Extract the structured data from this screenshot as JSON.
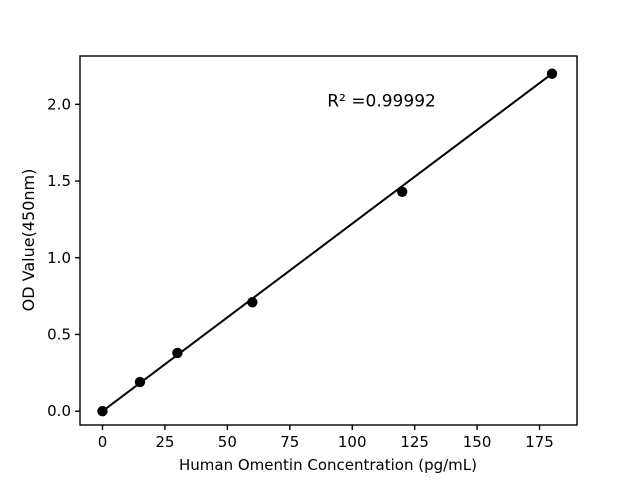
{
  "chart_data": {
    "type": "scatter",
    "title": "",
    "xlabel": "Human Omentin Concentration (pg/mL)",
    "ylabel": "OD Value(450nm)",
    "x": [
      0,
      15,
      30,
      60,
      120,
      180
    ],
    "y": [
      0.0,
      0.19,
      0.38,
      0.71,
      1.43,
      2.2
    ],
    "fit_line": {
      "x1": 0,
      "y1": 0.0,
      "x2": 180,
      "y2": 2.2
    },
    "annotation": {
      "text": "R² =0.99992",
      "x": 90,
      "y": 1.985
    },
    "x_tick_labels": [
      "0",
      "25",
      "50",
      "75",
      "100",
      "125",
      "150",
      "175"
    ],
    "x_tick_values": [
      0,
      25,
      50,
      75,
      100,
      125,
      150,
      175
    ],
    "y_tick_labels": [
      "0.0",
      "0.5",
      "1.0",
      "1.5",
      "2.0"
    ],
    "y_tick_values": [
      0.0,
      0.5,
      1.0,
      1.5,
      2.0
    ],
    "xlim": [
      -9,
      190
    ],
    "ylim": [
      -0.09,
      2.315
    ],
    "grid": false,
    "legend": null,
    "colors": {
      "background": "#ffffff",
      "line": "#000000",
      "marker": "#000000",
      "spine": "#000000",
      "text": "#000000"
    }
  }
}
